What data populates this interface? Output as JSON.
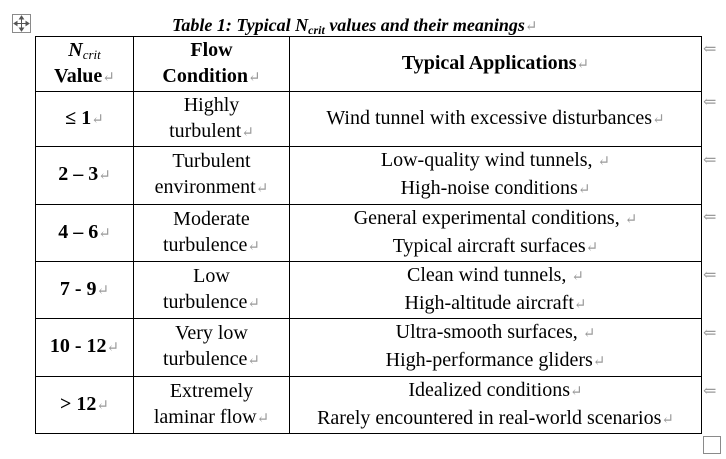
{
  "caption": {
    "prefix": "Table 1: Typical N",
    "sub": "crit",
    "suffix": " values and their meanings"
  },
  "paragraph_mark": "↵",
  "header": {
    "col1_n": "N",
    "col1_sub": "crit",
    "col1_line2": "Value",
    "col2_line1": "Flow",
    "col2_line2": "Condition",
    "col3": "Typical Applications"
  },
  "rows": [
    {
      "value": "≤ 1",
      "cond_1": "Highly",
      "cond_2": "turbulent",
      "app_1": "Wind tunnel with excessive disturbances",
      "app_2": ""
    },
    {
      "value": "2 – 3",
      "cond_1": "Turbulent",
      "cond_2": "environment",
      "app_1": "Low-quality wind tunnels, ",
      "app_2": "High-noise conditions"
    },
    {
      "value": "4 – 6",
      "cond_1": "Moderate",
      "cond_2": "turbulence",
      "app_1": "General experimental conditions, ",
      "app_2": "Typical aircraft surfaces"
    },
    {
      "value": "7 - 9",
      "cond_1": "Low",
      "cond_2": "turbulence",
      "app_1": "Clean wind tunnels, ",
      "app_2": "High-altitude aircraft"
    },
    {
      "value": "10 - 12",
      "cond_1": "Very low",
      "cond_2": "turbulence",
      "app_1": "Ultra-smooth surfaces, ",
      "app_2": "High-performance gliders"
    },
    {
      "value": "> 12",
      "cond_1": "Extremely",
      "cond_2": "laminar flow",
      "app_1": "Idealized conditions",
      "app_2": "Rarely encountered in real-world scenarios"
    }
  ],
  "row_end_mark": "⇐"
}
